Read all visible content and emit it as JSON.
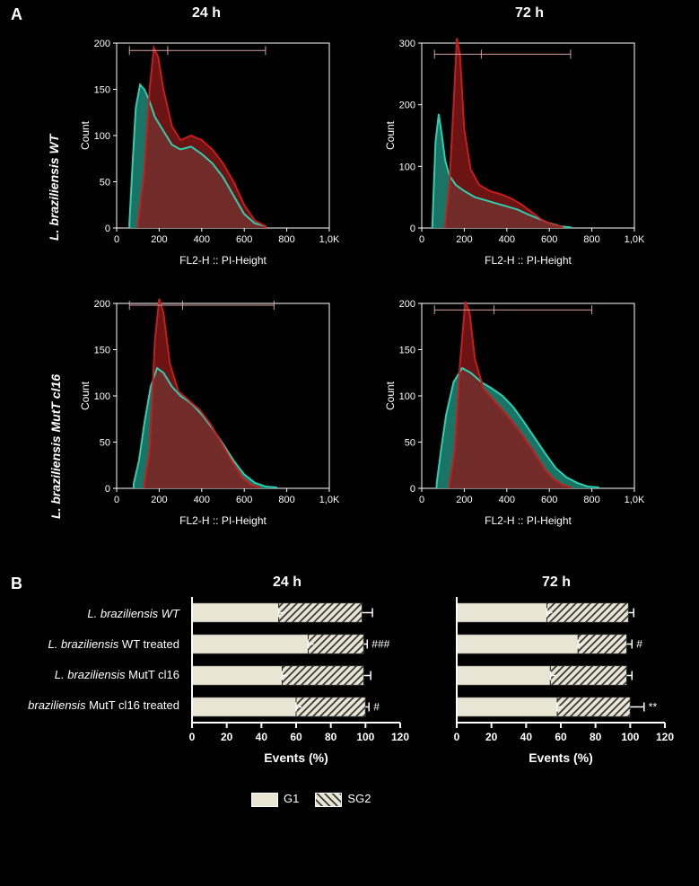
{
  "panelA": {
    "label": "A",
    "col_titles": [
      "24 h",
      "72 h"
    ],
    "row_labels": [
      "L. braziliensis WT",
      "L. braziliensis MutT cl16"
    ],
    "colors": {
      "series1_fill": "#8b1818",
      "series1_stroke": "#c41e1e",
      "series2_fill": "#1b7a6a",
      "series2_stroke": "#2ecfb0",
      "overlap_fill": "#5a4a3a",
      "axis": "#ffffff",
      "gate": "#d4a0a0",
      "bg": "#000000"
    },
    "plots": [
      {
        "ylim": [
          0,
          200
        ],
        "yticks": [
          0,
          50,
          100,
          150,
          200
        ],
        "xlim": [
          0,
          1000
        ],
        "xticks_labels": [
          "0",
          "200",
          "400",
          "600",
          "800",
          "1,0K"
        ],
        "xlabel": "FL2-H :: PI-Height",
        "ylabel": "Count",
        "gate_y": 192,
        "gate_break": 240,
        "gate_end": 700,
        "s2": {
          "data": [
            [
              60,
              5
            ],
            [
              75,
              70
            ],
            [
              90,
              130
            ],
            [
              110,
              155
            ],
            [
              130,
              150
            ],
            [
              150,
              140
            ],
            [
              180,
              120
            ],
            [
              220,
              105
            ],
            [
              260,
              90
            ],
            [
              300,
              85
            ],
            [
              350,
              88
            ],
            [
              400,
              80
            ],
            [
              450,
              70
            ],
            [
              500,
              55
            ],
            [
              550,
              35
            ],
            [
              600,
              15
            ],
            [
              650,
              5
            ],
            [
              700,
              2
            ]
          ]
        },
        "s1": {
          "data": [
            [
              100,
              5
            ],
            [
              130,
              60
            ],
            [
              155,
              150
            ],
            [
              175,
              195
            ],
            [
              195,
              185
            ],
            [
              220,
              150
            ],
            [
              260,
              110
            ],
            [
              300,
              95
            ],
            [
              350,
              100
            ],
            [
              400,
              95
            ],
            [
              450,
              85
            ],
            [
              500,
              70
            ],
            [
              550,
              50
            ],
            [
              600,
              25
            ],
            [
              650,
              8
            ],
            [
              700,
              2
            ]
          ]
        }
      },
      {
        "ylim": [
          0,
          300
        ],
        "yticks": [
          0,
          100,
          200,
          300
        ],
        "xlim": [
          0,
          1000
        ],
        "xticks_labels": [
          "0",
          "200",
          "400",
          "600",
          "800",
          "1,0K"
        ],
        "xlabel": "FL2-H :: PI-Height",
        "ylabel": "Count",
        "gate_y": 282,
        "gate_break": 280,
        "gate_end": 700,
        "s2": {
          "data": [
            [
              50,
              5
            ],
            [
              65,
              140
            ],
            [
              80,
              185
            ],
            [
              95,
              150
            ],
            [
              110,
              110
            ],
            [
              130,
              85
            ],
            [
              160,
              70
            ],
            [
              200,
              60
            ],
            [
              250,
              50
            ],
            [
              300,
              45
            ],
            [
              350,
              40
            ],
            [
              400,
              35
            ],
            [
              450,
              30
            ],
            [
              500,
              22
            ],
            [
              550,
              15
            ],
            [
              600,
              8
            ],
            [
              650,
              3
            ],
            [
              700,
              1
            ]
          ]
        },
        "s1": {
          "data": [
            [
              110,
              5
            ],
            [
              130,
              70
            ],
            [
              150,
              200
            ],
            [
              165,
              308
            ],
            [
              180,
              280
            ],
            [
              200,
              160
            ],
            [
              230,
              95
            ],
            [
              270,
              70
            ],
            [
              320,
              60
            ],
            [
              370,
              55
            ],
            [
              420,
              48
            ],
            [
              470,
              38
            ],
            [
              520,
              25
            ],
            [
              570,
              12
            ],
            [
              620,
              5
            ],
            [
              660,
              2
            ]
          ]
        }
      },
      {
        "ylim": [
          0,
          200
        ],
        "yticks": [
          0,
          50,
          100,
          150,
          200
        ],
        "xlim": [
          0,
          1000
        ],
        "xticks_labels": [
          "0",
          "200",
          "400",
          "600",
          "800",
          "1,0K"
        ],
        "xlabel": "FL2-H :: PI-Height",
        "ylabel": "Count",
        "gate_y": 198,
        "gate_break": 310,
        "gate_end": 740,
        "s2": {
          "data": [
            [
              80,
              5
            ],
            [
              105,
              30
            ],
            [
              130,
              70
            ],
            [
              160,
              110
            ],
            [
              190,
              130
            ],
            [
              220,
              125
            ],
            [
              260,
              110
            ],
            [
              300,
              100
            ],
            [
              350,
              92
            ],
            [
              400,
              80
            ],
            [
              450,
              65
            ],
            [
              500,
              48
            ],
            [
              550,
              30
            ],
            [
              600,
              15
            ],
            [
              650,
              6
            ],
            [
              700,
              2
            ],
            [
              750,
              1
            ]
          ]
        },
        "s1": {
          "data": [
            [
              130,
              5
            ],
            [
              155,
              40
            ],
            [
              180,
              160
            ],
            [
              200,
              205
            ],
            [
              220,
              190
            ],
            [
              250,
              135
            ],
            [
              290,
              105
            ],
            [
              340,
              95
            ],
            [
              390,
              85
            ],
            [
              440,
              70
            ],
            [
              490,
              50
            ],
            [
              540,
              30
            ],
            [
              590,
              12
            ],
            [
              630,
              4
            ],
            [
              670,
              1
            ]
          ]
        }
      },
      {
        "ylim": [
          0,
          200
        ],
        "yticks": [
          0,
          50,
          100,
          150,
          200
        ],
        "xlim": [
          0,
          1000
        ],
        "xticks_labels": [
          "0",
          "200",
          "400",
          "600",
          "800",
          "1,0K"
        ],
        "xlabel": "FL2-H :: PI-Height",
        "ylabel": "Count",
        "gate_y": 193,
        "gate_break": 340,
        "gate_end": 800,
        "s2": {
          "data": [
            [
              70,
              5
            ],
            [
              90,
              40
            ],
            [
              115,
              80
            ],
            [
              150,
              115
            ],
            [
              190,
              130
            ],
            [
              230,
              125
            ],
            [
              280,
              115
            ],
            [
              330,
              108
            ],
            [
              380,
              100
            ],
            [
              430,
              88
            ],
            [
              480,
              72
            ],
            [
              530,
              55
            ],
            [
              580,
              38
            ],
            [
              630,
              22
            ],
            [
              680,
              12
            ],
            [
              730,
              6
            ],
            [
              780,
              2
            ],
            [
              830,
              1
            ]
          ]
        },
        "s1": {
          "data": [
            [
              130,
              5
            ],
            [
              155,
              40
            ],
            [
              180,
              135
            ],
            [
              205,
              202
            ],
            [
              225,
              190
            ],
            [
              250,
              140
            ],
            [
              290,
              108
            ],
            [
              340,
              95
            ],
            [
              390,
              82
            ],
            [
              440,
              68
            ],
            [
              490,
              52
            ],
            [
              540,
              35
            ],
            [
              580,
              20
            ],
            [
              620,
              10
            ],
            [
              660,
              4
            ],
            [
              700,
              1
            ]
          ]
        }
      }
    ]
  },
  "panelB": {
    "label": "B",
    "col_titles": [
      "24 h",
      "72 h"
    ],
    "categories": [
      "L. braziliensis WT",
      "L. braziliensis WT treated",
      "L. braziliensis MutT cl16",
      "braziliensis MutT cl16  treated"
    ],
    "charts": [
      {
        "g1": [
          50,
          67,
          52,
          60
        ],
        "sg2": [
          48,
          32,
          47,
          40
        ],
        "err": [
          6,
          2,
          4,
          2
        ],
        "sig": [
          "",
          "###",
          "",
          "#"
        ]
      },
      {
        "g1": [
          52,
          70,
          54,
          58
        ],
        "sg2": [
          47,
          28,
          44,
          42
        ],
        "err": [
          3,
          3,
          3,
          8
        ],
        "sig": [
          "",
          "#",
          "",
          "**"
        ]
      }
    ],
    "xlim": [
      0,
      120
    ],
    "xticks": [
      0,
      20,
      40,
      60,
      80,
      100,
      120
    ],
    "xlabel": "Events (%)",
    "colors": {
      "g1_fill": "#e8e5d4",
      "sg2_fill": "#e8e5d4",
      "hatch": "#3a3a3a",
      "stroke": "#2a2a2a",
      "axis": "#ffffff",
      "err": "#ffffff"
    },
    "legend": {
      "items": [
        "G1",
        "SG2"
      ]
    }
  }
}
